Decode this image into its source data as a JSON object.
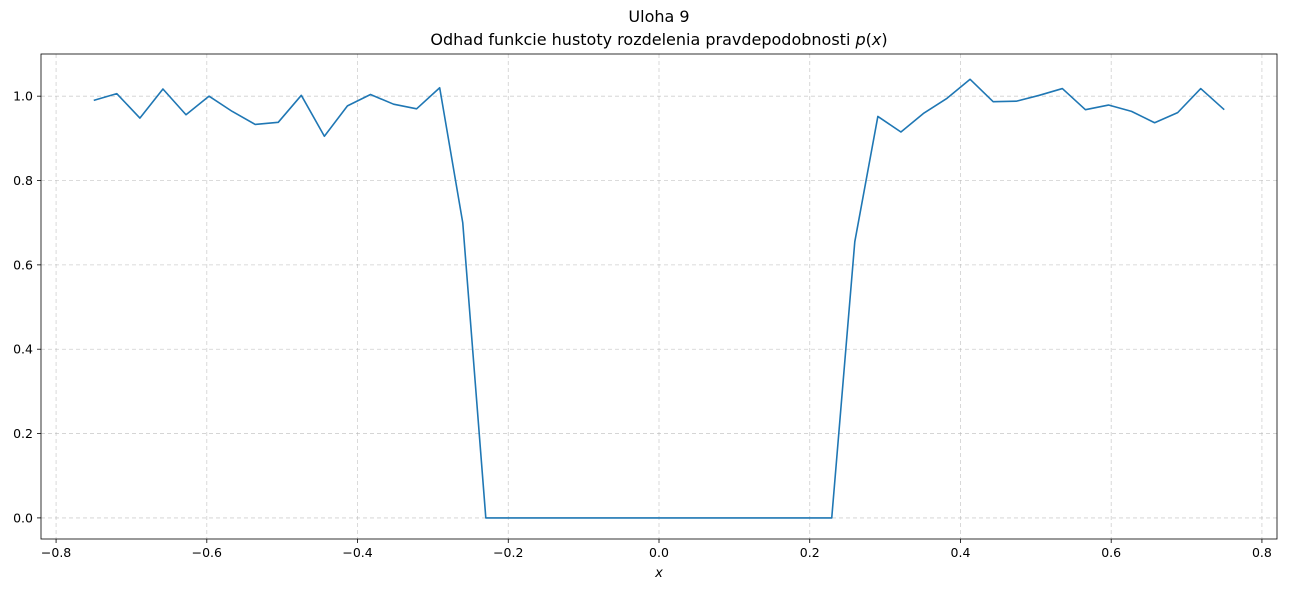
{
  "chart_data": {
    "type": "line",
    "title": "Uloha 9",
    "subtitle": "Odhad funkcie hustoty rozdelenia pravdepodobnosti p(x)",
    "subtitle_parts": {
      "prefix": "Odhad funkcie hustoty rozdelenia pravdepodobnosti ",
      "func": "p",
      "open": "(",
      "arg": "x",
      "close": ")"
    },
    "xlabel": "x",
    "ylabel": "",
    "xlim": [
      -0.82,
      0.82
    ],
    "ylim": [
      -0.05,
      1.1
    ],
    "xticks": [
      -0.8,
      -0.6,
      -0.4,
      -0.2,
      0.0,
      0.2,
      0.4,
      0.6,
      0.8
    ],
    "xtick_labels": [
      "−0.8",
      "−0.6",
      "−0.4",
      "−0.2",
      "0.0",
      "0.2",
      "0.4",
      "0.6",
      "0.8"
    ],
    "yticks": [
      0.0,
      0.2,
      0.4,
      0.6,
      0.8,
      1.0
    ],
    "ytick_labels": [
      "0.0",
      "0.2",
      "0.4",
      "0.6",
      "0.8",
      "1.0"
    ],
    "grid": true,
    "line_color": "#1f77b4",
    "series": [
      {
        "x": [
          -0.75,
          -0.7194,
          -0.6888,
          -0.6582,
          -0.6276,
          -0.597,
          -0.5664,
          -0.5358,
          -0.5052,
          -0.4746,
          -0.444,
          -0.4134,
          -0.3828,
          -0.3522,
          -0.3216,
          -0.291,
          -0.2604,
          -0.2298,
          -0.1992,
          -0.1686,
          -0.138,
          -0.1074,
          -0.0768,
          -0.0462,
          -0.0156,
          0.015,
          0.0456,
          0.0762,
          0.1068,
          0.1374,
          0.168,
          0.1986,
          0.2292,
          0.2598,
          0.2904,
          0.321,
          0.3516,
          0.3822,
          0.4128,
          0.4434,
          0.474,
          0.5046,
          0.5352,
          0.5658,
          0.5964,
          0.627,
          0.6576,
          0.6882,
          0.7188,
          0.75
        ],
        "y": [
          0.99,
          1.006,
          0.948,
          1.017,
          0.956,
          1.0,
          0.964,
          0.933,
          0.938,
          1.002,
          0.905,
          0.977,
          1.004,
          0.981,
          0.97,
          1.02,
          0.7,
          0.0,
          0.0,
          0.0,
          0.0,
          0.0,
          0.0,
          0.0,
          0.0,
          0.0,
          0.0,
          0.0,
          0.0,
          0.0,
          0.0,
          0.0,
          0.0,
          0.655,
          0.952,
          0.915,
          0.96,
          0.995,
          1.04,
          0.987,
          0.988,
          1.002,
          1.018,
          0.968,
          0.979,
          0.964,
          0.937,
          0.961,
          1.018,
          0.968
        ]
      }
    ]
  }
}
